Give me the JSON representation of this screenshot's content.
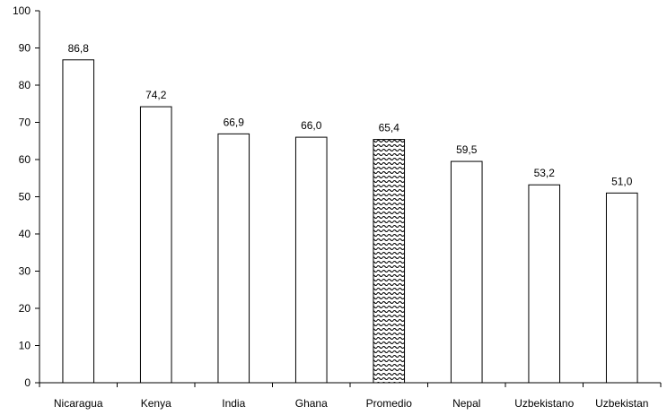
{
  "chart_data": {
    "type": "bar",
    "categories": [
      "Nicaragua",
      "Kenya",
      "India",
      "Ghana",
      "Promedio",
      "Nepal",
      "Uzbekistano",
      "Uzbekistan"
    ],
    "values": [
      86.8,
      74.2,
      66.9,
      66.0,
      65.4,
      59.5,
      53.2,
      51.0
    ],
    "data_labels": [
      "86,8",
      "74,2",
      "66,9",
      "66,0",
      "65,4",
      "59,5",
      "53,2",
      "51,0"
    ],
    "highlighted_category": "Promedio",
    "title": "",
    "xlabel": "",
    "ylabel": "",
    "ylim": [
      0,
      100
    ],
    "yticks": [
      0,
      10,
      20,
      30,
      40,
      50,
      60,
      70,
      80,
      90,
      100
    ],
    "grid": false,
    "legend": "none",
    "colors": {
      "bar_fill": "#ffffff",
      "bar_stroke": "#000000",
      "highlight_pattern": "#000000"
    }
  }
}
